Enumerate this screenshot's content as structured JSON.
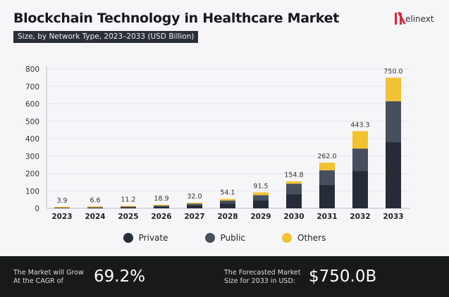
{
  "header": {
    "title": "Blockchain Technology in Healthcare Market",
    "subtitle": "Size, by Network Type, 2023–2033 (USD Billion)",
    "logo": "elinext"
  },
  "chart_data": {
    "type": "bar",
    "stacked": true,
    "title": "Blockchain Technology in Healthcare Market",
    "subtitle": "Size, by Network Type, 2023–2033 (USD Billion)",
    "categories": [
      "2023",
      "2024",
      "2025",
      "2026",
      "2027",
      "2028",
      "2029",
      "2030",
      "2031",
      "2032",
      "2033"
    ],
    "totals": [
      "3.9",
      "6.6",
      "11.2",
      "18.9",
      "32.0",
      "54.1",
      "91.5",
      "154.8",
      "262.0",
      "443.3",
      "750.0"
    ],
    "series": [
      {
        "name": "Private",
        "color": "#272d38",
        "values": [
          2.0,
          3.4,
          5.8,
          9.8,
          16.6,
          28.1,
          47.6,
          81,
          135,
          214,
          380
        ]
      },
      {
        "name": "Public",
        "color": "#454f5e",
        "values": [
          1.2,
          2.0,
          3.4,
          5.8,
          9.8,
          16.5,
          28.0,
          60,
          83,
          129,
          235
        ]
      },
      {
        "name": "Others",
        "color": "#f2c232",
        "values": [
          0.7,
          1.2,
          2.0,
          3.3,
          5.6,
          9.5,
          15.9,
          13.8,
          44,
          100.3,
          135
        ]
      }
    ],
    "yticks": [
      0,
      100,
      200,
      300,
      400,
      500,
      600,
      700,
      800
    ],
    "ylim": [
      0,
      800
    ],
    "grid": true,
    "legend": "bottom"
  },
  "footer": {
    "cagr_label_1": "The Market will Grow",
    "cagr_label_2": "At the CAGR of",
    "cagr_value": "69.2%",
    "forecast_label_1": "The Forecasted Market",
    "forecast_label_2": "Size for 2033 in USD:",
    "forecast_value": "$750.0B"
  }
}
